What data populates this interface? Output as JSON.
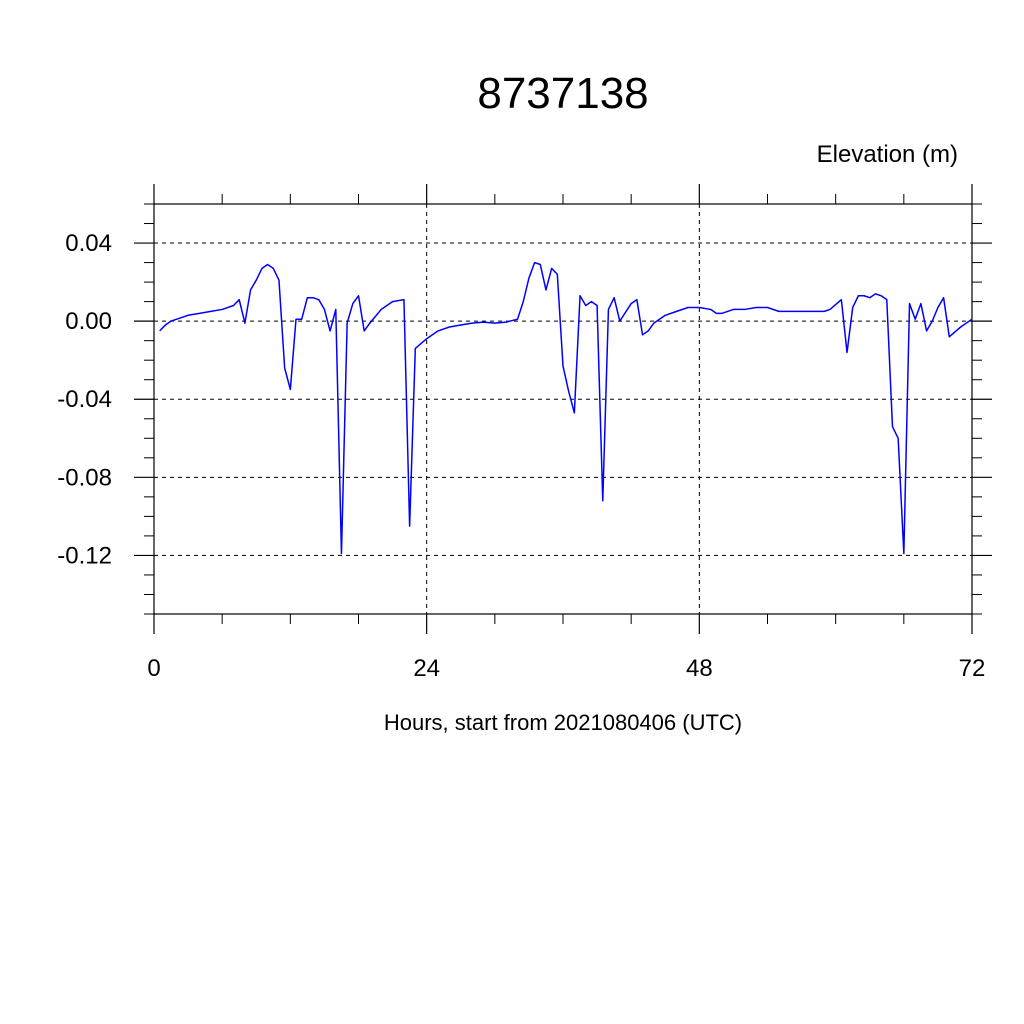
{
  "chart_data": {
    "type": "line",
    "title": "8737138",
    "ylabel": "Elevation (m)",
    "xlabel": "Hours, start from 2021080406 (UTC)",
    "xlim": [
      0,
      72
    ],
    "ylim": [
      -0.15,
      0.06
    ],
    "x_ticks": [
      0,
      24,
      48,
      72
    ],
    "x_tick_labels": [
      "0",
      "24",
      "48",
      "72"
    ],
    "y_ticks": [
      0.04,
      0.0,
      -0.04,
      -0.08,
      -0.12
    ],
    "y_tick_labels": [
      "0.04",
      "0.00",
      "-0.04",
      "-0.08",
      "-0.12"
    ],
    "grid": "dashed at labelled ticks",
    "series": [
      {
        "color": "#0000ff",
        "points": [
          [
            0.5,
            -0.005
          ],
          [
            1.0,
            -0.002
          ],
          [
            1.5,
            0.0
          ],
          [
            2.0,
            0.001
          ],
          [
            3.0,
            0.003
          ],
          [
            4.0,
            0.004
          ],
          [
            5.0,
            0.005
          ],
          [
            6.0,
            0.006
          ],
          [
            7.0,
            0.008
          ],
          [
            7.5,
            0.011
          ],
          [
            8.0,
            -0.001
          ],
          [
            8.5,
            0.016
          ],
          [
            9.0,
            0.021
          ],
          [
            9.5,
            0.027
          ],
          [
            10.0,
            0.029
          ],
          [
            10.5,
            0.027
          ],
          [
            11.0,
            0.021
          ],
          [
            11.5,
            -0.024
          ],
          [
            12.0,
            -0.035
          ],
          [
            12.5,
            0.001
          ],
          [
            13.0,
            0.001
          ],
          [
            13.5,
            0.012
          ],
          [
            14.0,
            0.012
          ],
          [
            14.5,
            0.011
          ],
          [
            15.0,
            0.006
          ],
          [
            15.5,
            -0.005
          ],
          [
            16.0,
            0.006
          ],
          [
            16.5,
            -0.119
          ],
          [
            17.0,
            -0.001
          ],
          [
            17.5,
            0.009
          ],
          [
            18.0,
            0.013
          ],
          [
            18.5,
            -0.005
          ],
          [
            19.0,
            -0.001
          ],
          [
            20.0,
            0.006
          ],
          [
            21.0,
            0.01
          ],
          [
            22.0,
            0.011
          ],
          [
            22.5,
            -0.105
          ],
          [
            23.0,
            -0.014
          ],
          [
            24.0,
            -0.009
          ],
          [
            25.0,
            -0.005
          ],
          [
            26.0,
            -0.003
          ],
          [
            27.0,
            -0.002
          ],
          [
            28.0,
            -0.001
          ],
          [
            29.0,
            -0.0005
          ],
          [
            30.0,
            -0.001
          ],
          [
            31.0,
            -0.0005
          ],
          [
            32.0,
            0.001
          ],
          [
            32.5,
            0.01
          ],
          [
            33.0,
            0.022
          ],
          [
            33.5,
            0.03
          ],
          [
            34.0,
            0.029
          ],
          [
            34.5,
            0.016
          ],
          [
            35.0,
            0.027
          ],
          [
            35.5,
            0.024
          ],
          [
            36.0,
            -0.023
          ],
          [
            36.5,
            -0.036
          ],
          [
            37.0,
            -0.047
          ],
          [
            37.5,
            0.013
          ],
          [
            38.0,
            0.008
          ],
          [
            38.5,
            0.01
          ],
          [
            39.0,
            0.008
          ],
          [
            39.5,
            -0.092
          ],
          [
            40.0,
            0.006
          ],
          [
            40.5,
            0.012
          ],
          [
            41.0,
            0.0
          ],
          [
            42.0,
            0.009
          ],
          [
            42.5,
            0.011
          ],
          [
            43.0,
            -0.007
          ],
          [
            43.5,
            -0.005
          ],
          [
            44.0,
            -0.001
          ],
          [
            45.0,
            0.003
          ],
          [
            46.0,
            0.005
          ],
          [
            47.0,
            0.007
          ],
          [
            48.0,
            0.007
          ],
          [
            49.0,
            0.006
          ],
          [
            49.5,
            0.004
          ],
          [
            50.0,
            0.004
          ],
          [
            51.0,
            0.006
          ],
          [
            52.0,
            0.006
          ],
          [
            53.0,
            0.007
          ],
          [
            54.0,
            0.007
          ],
          [
            55.0,
            0.005
          ],
          [
            56.0,
            0.005
          ],
          [
            57.0,
            0.005
          ],
          [
            58.0,
            0.005
          ],
          [
            59.0,
            0.005
          ],
          [
            59.5,
            0.006
          ],
          [
            60.5,
            0.011
          ],
          [
            61.0,
            -0.016
          ],
          [
            61.5,
            0.007
          ],
          [
            62.0,
            0.013
          ],
          [
            62.5,
            0.013
          ],
          [
            63.0,
            0.012
          ],
          [
            63.5,
            0.014
          ],
          [
            64.0,
            0.013
          ],
          [
            64.5,
            0.011
          ],
          [
            65.0,
            -0.054
          ],
          [
            65.5,
            -0.06
          ],
          [
            66.0,
            -0.119
          ],
          [
            66.5,
            0.009
          ],
          [
            67.0,
            0.001
          ],
          [
            67.5,
            0.009
          ],
          [
            68.0,
            -0.005
          ],
          [
            68.5,
            0.0
          ],
          [
            69.0,
            0.007
          ],
          [
            69.5,
            0.012
          ],
          [
            70.0,
            -0.008
          ],
          [
            71.0,
            -0.003
          ],
          [
            72.0,
            0.001
          ]
        ]
      }
    ]
  }
}
